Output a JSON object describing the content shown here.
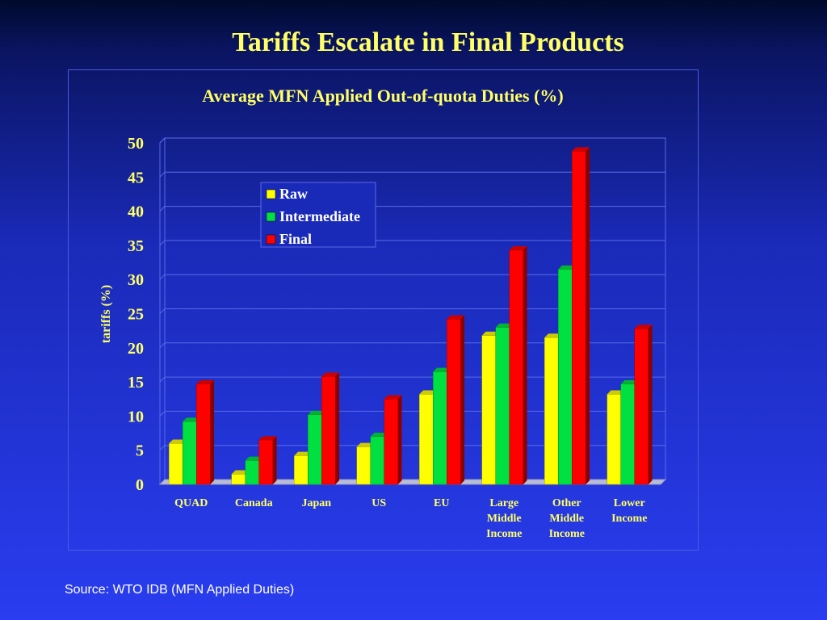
{
  "slide": {
    "title": "Tariffs Escalate in Final Products",
    "source": "Source: WTO IDB (MFN Applied Duties)"
  },
  "chart_data": {
    "type": "bar",
    "title": "Average MFN Applied Out-of-quota Duties (%)",
    "xlabel": "",
    "ylabel": "tariffs (%)",
    "ylim": [
      0,
      50
    ],
    "yticks": [
      0,
      5,
      10,
      15,
      20,
      25,
      30,
      35,
      40,
      45,
      50
    ],
    "grid": true,
    "legend_position": "top-left",
    "categories": [
      [
        "QUAD"
      ],
      [
        "Canada"
      ],
      [
        "Japan"
      ],
      [
        "US"
      ],
      [
        "EU"
      ],
      [
        "Large",
        "Middle",
        "Income"
      ],
      [
        "Other",
        "Middle",
        "Income"
      ],
      [
        "Lower",
        "Income"
      ]
    ],
    "series": [
      {
        "name": "Raw",
        "color": "#ffff00",
        "values": [
          6.0,
          1.5,
          4.2,
          5.5,
          13.2,
          21.8,
          21.5,
          13.2
        ]
      },
      {
        "name": "Intermediate",
        "color": "#00e040",
        "values": [
          9.2,
          3.5,
          10.2,
          7.0,
          16.5,
          23.0,
          31.5,
          14.7
        ]
      },
      {
        "name": "Final",
        "color": "#ff0000",
        "values": [
          14.7,
          6.5,
          15.8,
          12.5,
          24.2,
          34.3,
          48.8,
          22.8
        ]
      }
    ]
  }
}
